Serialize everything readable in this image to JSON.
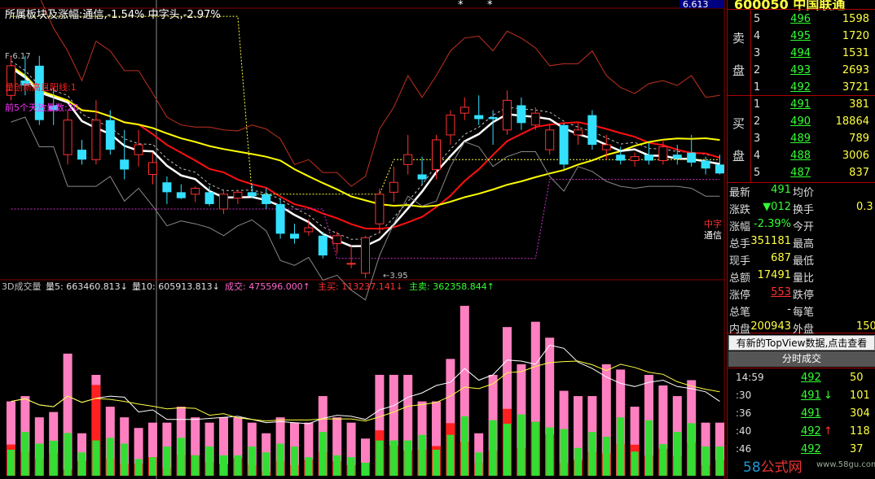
{
  "header": {
    "title": "所属板块及涨幅:通信,-1.54% 中字头,-2.97%",
    "price_box": "6.613",
    "stock_code_name": "600050 中国联通",
    "stars": [
      "*",
      "*"
    ]
  },
  "main_chart": {
    "label_top_left": "F-6.17",
    "label_red": "量创新高且阳线:1",
    "label_magenta": "前5个天放量数:20",
    "low_label": "←3.95",
    "right_labels": [
      {
        "text": "中字",
        "color": "#ff3030"
      },
      {
        "text": "通信",
        "color": "#ffffff"
      }
    ]
  },
  "volume_header": [
    {
      "text": "3D成交量",
      "color": "#c0c0c0"
    },
    {
      "text": "量5: 663460.813↓",
      "color": "#e0e0e0"
    },
    {
      "text": "量10: 605913.813↓",
      "color": "#e0e0e0"
    },
    {
      "text": "成交: 475596.000↑",
      "color": "#ff66cc"
    },
    {
      "text": "主买: 113237.141↓",
      "color": "#ff3030"
    },
    {
      "text": "主卖: 362358.844↑",
      "color": "#33ff33"
    }
  ],
  "chart_data": {
    "type": "candlestick",
    "title": "所属板块及涨幅:通信,-1.54% 中字头,-2.97%",
    "price_labels": {
      "high_marker": 6.17,
      "low_marker": 3.95
    },
    "candles": [
      {
        "o": 5.7,
        "h": 6.1,
        "l": 5.65,
        "c": 6.0
      },
      {
        "o": 5.85,
        "h": 6.1,
        "l": 5.7,
        "c": 5.8
      },
      {
        "o": 6.0,
        "h": 6.1,
        "l": 5.4,
        "c": 5.45
      },
      {
        "o": 5.6,
        "h": 5.78,
        "l": 5.4,
        "c": 5.55
      },
      {
        "o": 5.1,
        "h": 5.55,
        "l": 5.0,
        "c": 5.45
      },
      {
        "o": 5.15,
        "h": 5.25,
        "l": 5.0,
        "c": 5.05
      },
      {
        "o": 5.05,
        "h": 5.65,
        "l": 5.0,
        "c": 5.45
      },
      {
        "o": 5.45,
        "h": 5.55,
        "l": 5.1,
        "c": 5.15
      },
      {
        "o": 5.05,
        "h": 5.35,
        "l": 4.85,
        "c": 4.95
      },
      {
        "o": 5.1,
        "h": 5.35,
        "l": 4.98,
        "c": 5.2
      },
      {
        "o": 4.9,
        "h": 5.12,
        "l": 4.8,
        "c": 5.02
      },
      {
        "o": 4.82,
        "h": 4.88,
        "l": 4.6,
        "c": 4.72
      },
      {
        "o": 4.72,
        "h": 4.8,
        "l": 4.65,
        "c": 4.66
      },
      {
        "o": 4.7,
        "h": 4.78,
        "l": 4.62,
        "c": 4.76
      },
      {
        "o": 4.72,
        "h": 4.78,
        "l": 4.58,
        "c": 4.6
      },
      {
        "o": 4.55,
        "h": 4.75,
        "l": 4.5,
        "c": 4.7
      },
      {
        "o": 4.66,
        "h": 4.74,
        "l": 4.6,
        "c": 4.72
      },
      {
        "o": 4.72,
        "h": 4.8,
        "l": 4.66,
        "c": 4.68
      },
      {
        "o": 4.7,
        "h": 4.76,
        "l": 4.55,
        "c": 4.6
      },
      {
        "o": 4.6,
        "h": 4.66,
        "l": 4.25,
        "c": 4.3
      },
      {
        "o": 4.3,
        "h": 4.4,
        "l": 4.2,
        "c": 4.25
      },
      {
        "o": 4.32,
        "h": 4.45,
        "l": 4.28,
        "c": 4.36
      },
      {
        "o": 4.28,
        "h": 4.32,
        "l": 4.05,
        "c": 4.08
      },
      {
        "o": 4.2,
        "h": 4.32,
        "l": 4.1,
        "c": 4.28
      },
      {
        "o": 4.0,
        "h": 4.18,
        "l": 3.95,
        "c": 4.0
      },
      {
        "o": 3.9,
        "h": 4.28,
        "l": 3.85,
        "c": 4.26
      },
      {
        "o": 4.4,
        "h": 4.76,
        "l": 4.3,
        "c": 4.7
      },
      {
        "o": 4.72,
        "h": 4.98,
        "l": 4.62,
        "c": 4.82
      },
      {
        "o": 5.0,
        "h": 5.3,
        "l": 4.9,
        "c": 5.1
      },
      {
        "o": 4.9,
        "h": 5.08,
        "l": 4.8,
        "c": 4.85
      },
      {
        "o": 4.95,
        "h": 5.3,
        "l": 4.85,
        "c": 5.25
      },
      {
        "o": 5.3,
        "h": 5.55,
        "l": 5.2,
        "c": 5.5
      },
      {
        "o": 5.52,
        "h": 5.68,
        "l": 5.45,
        "c": 5.58
      },
      {
        "o": 5.5,
        "h": 5.7,
        "l": 5.4,
        "c": 5.46
      },
      {
        "o": 5.48,
        "h": 5.55,
        "l": 5.2,
        "c": 5.46
      },
      {
        "o": 5.35,
        "h": 5.75,
        "l": 5.3,
        "c": 5.65
      },
      {
        "o": 5.6,
        "h": 5.68,
        "l": 5.35,
        "c": 5.42
      },
      {
        "o": 5.4,
        "h": 5.58,
        "l": 5.35,
        "c": 5.52
      },
      {
        "o": 5.15,
        "h": 5.4,
        "l": 5.1,
        "c": 5.35
      },
      {
        "o": 5.4,
        "h": 5.42,
        "l": 4.95,
        "c": 5.0
      },
      {
        "o": 5.3,
        "h": 5.42,
        "l": 5.2,
        "c": 5.35
      },
      {
        "o": 5.5,
        "h": 5.55,
        "l": 5.15,
        "c": 5.2
      },
      {
        "o": 5.15,
        "h": 5.3,
        "l": 5.05,
        "c": 5.2
      },
      {
        "o": 5.1,
        "h": 5.18,
        "l": 5.0,
        "c": 5.04
      },
      {
        "o": 5.04,
        "h": 5.12,
        "l": 4.98,
        "c": 5.08
      },
      {
        "o": 5.1,
        "h": 5.22,
        "l": 5.0,
        "c": 5.04
      },
      {
        "o": 5.04,
        "h": 5.25,
        "l": 5.0,
        "c": 5.18
      },
      {
        "o": 5.1,
        "h": 5.2,
        "l": 5.0,
        "c": 5.06
      },
      {
        "o": 5.12,
        "h": 5.3,
        "l": 4.98,
        "c": 5.02
      },
      {
        "o": 5.04,
        "h": 5.08,
        "l": 4.9,
        "c": 4.96
      },
      {
        "o": 5.0,
        "h": 5.1,
        "l": 4.9,
        "c": 4.91
      }
    ],
    "volumes": [
      {
        "buy": 0.42,
        "sell": 0.58
      },
      {
        "buy": 0.3,
        "sell": 0.7
      },
      {
        "buy": 0.3,
        "sell": 0.7
      },
      {
        "buy": 0.35,
        "sell": 0.65
      },
      {
        "buy": 0.05,
        "sell": 0.95
      },
      {
        "buy": 0.35,
        "sell": 0.65
      },
      {
        "buy": 0.9,
        "sell": 0.1
      },
      {
        "buy": 0.25,
        "sell": 0.75
      },
      {
        "buy": 0.2,
        "sell": 0.8
      },
      {
        "buy": 0.25,
        "sell": 0.75
      },
      {
        "buy": 0.35,
        "sell": 0.65
      },
      {
        "buy": 0.15,
        "sell": 0.85
      },
      {
        "buy": 0.3,
        "sell": 0.7
      },
      {
        "buy": 0.35,
        "sell": 0.65
      },
      {
        "buy": 0.25,
        "sell": 0.75
      },
      {
        "buy": 0.2,
        "sell": 0.8
      },
      {
        "buy": 0.3,
        "sell": 0.7
      },
      {
        "buy": 0.2,
        "sell": 0.8
      },
      {
        "buy": 0.1,
        "sell": 0.9
      },
      {
        "buy": 0.25,
        "sell": 0.75
      },
      {
        "buy": 0.2,
        "sell": 0.8
      },
      {
        "buy": 0.3,
        "sell": 0.7
      },
      {
        "buy": 0.3,
        "sell": 0.7
      },
      {
        "buy": 0.25,
        "sell": 0.75
      },
      {
        "buy": 0.2,
        "sell": 0.8
      },
      {
        "buy": 0.35,
        "sell": 0.65
      },
      {
        "buy": 0.45,
        "sell": 0.55
      },
      {
        "buy": 0.3,
        "sell": 0.7
      },
      {
        "buy": 0.25,
        "sell": 0.75
      },
      {
        "buy": 0.35,
        "sell": 0.65
      },
      {
        "buy": 0.4,
        "sell": 0.6
      },
      {
        "buy": 0.45,
        "sell": 0.55
      },
      {
        "buy": 0.2,
        "sell": 0.8
      },
      {
        "buy": 0.3,
        "sell": 0.7
      },
      {
        "buy": 0.25,
        "sell": 0.75
      },
      {
        "buy": 0.45,
        "sell": 0.55
      },
      {
        "buy": 0.25,
        "sell": 0.75
      },
      {
        "buy": 0.35,
        "sell": 0.65
      },
      {
        "buy": 0.3,
        "sell": 0.7
      },
      {
        "buy": 0.15,
        "sell": 0.85
      },
      {
        "buy": 0.2,
        "sell": 0.8
      },
      {
        "buy": 0.3,
        "sell": 0.7
      },
      {
        "buy": 0.2,
        "sell": 0.8
      },
      {
        "buy": 0.3,
        "sell": 0.7
      },
      {
        "buy": 0.45,
        "sell": 0.55
      },
      {
        "buy": 0.2,
        "sell": 0.8
      },
      {
        "buy": 0.3,
        "sell": 0.7
      },
      {
        "buy": 0.25,
        "sell": 0.75
      },
      {
        "buy": 0.35,
        "sell": 0.65
      },
      {
        "buy": 0.2,
        "sell": 0.8
      },
      {
        "buy": 0.3,
        "sell": 0.7
      }
    ],
    "volume_totals": [
      14,
      15,
      11,
      12,
      23,
      8,
      19,
      13,
      11,
      9,
      10,
      10,
      13,
      11,
      10,
      11,
      11,
      10,
      8,
      11,
      10,
      10,
      15,
      11,
      10,
      7,
      19,
      19,
      19,
      14,
      14,
      22,
      32,
      8,
      19,
      28,
      21,
      29,
      26,
      16,
      15,
      15,
      21,
      20,
      13,
      19,
      17,
      15,
      18,
      10,
      10
    ]
  },
  "quote_panel": {
    "sell_label_a": "卖",
    "sell_label_b": "盘",
    "buy_label_a": "买",
    "buy_label_b": "盘",
    "sell_levels": [
      {
        "level": "5",
        "price": "496",
        "volume": "1598"
      },
      {
        "level": "4",
        "price": "495",
        "volume": "1720"
      },
      {
        "level": "3",
        "price": "494",
        "volume": "1531"
      },
      {
        "level": "2",
        "price": "493",
        "volume": "2693"
      },
      {
        "level": "1",
        "price": "492",
        "volume": "3721"
      }
    ],
    "buy_levels": [
      {
        "level": "1",
        "price": "491",
        "volume": "381"
      },
      {
        "level": "2",
        "price": "490",
        "volume": "18864"
      },
      {
        "level": "3",
        "price": "489",
        "volume": "789"
      },
      {
        "level": "4",
        "price": "488",
        "volume": "3006"
      },
      {
        "level": "5",
        "price": "487",
        "volume": "837"
      }
    ],
    "stats": [
      {
        "label": "最新",
        "value": "491",
        "label2": "均价",
        "value2": ""
      },
      {
        "label": "涨跌",
        "value": "▼012",
        "label2": "换手",
        "value2": "0.3"
      },
      {
        "label": "涨幅",
        "value": "-2.39%",
        "label2": "今开",
        "value2": ""
      },
      {
        "label": "总手",
        "value": "351181",
        "label2": "最高",
        "value2": ""
      },
      {
        "label": "现手",
        "value": "687",
        "label2": "最低",
        "value2": ""
      },
      {
        "label": "总额",
        "value": "17491",
        "label2": "量比",
        "value2": ""
      },
      {
        "label": "涨停",
        "value": "553",
        "label2": "跌停",
        "value2": ""
      },
      {
        "label": "总笔",
        "value": "-",
        "label2": "每笔",
        "value2": ""
      },
      {
        "label": "内盘",
        "value": "200943",
        "label2": "外盘",
        "value2": "150"
      }
    ]
  },
  "topview_banner": "有新的TopView数据,点击查看",
  "ticks_tab": "分时成交",
  "ticks": [
    {
      "time": "14:59",
      "price": "492",
      "vol": "50",
      "arrow": ""
    },
    {
      "time": ":30",
      "price": "491",
      "vol": "101",
      "arrow": "down"
    },
    {
      "time": ":36",
      "price": "491",
      "vol": "304",
      "arrow": ""
    },
    {
      "time": ":40",
      "price": "492",
      "vol": "118",
      "arrow": "up"
    },
    {
      "time": ":46",
      "price": "492",
      "vol": "37",
      "arrow": ""
    }
  ],
  "watermark": {
    "brand_num": "58",
    "brand_text": "公式网",
    "url": "www.58gu.com"
  }
}
